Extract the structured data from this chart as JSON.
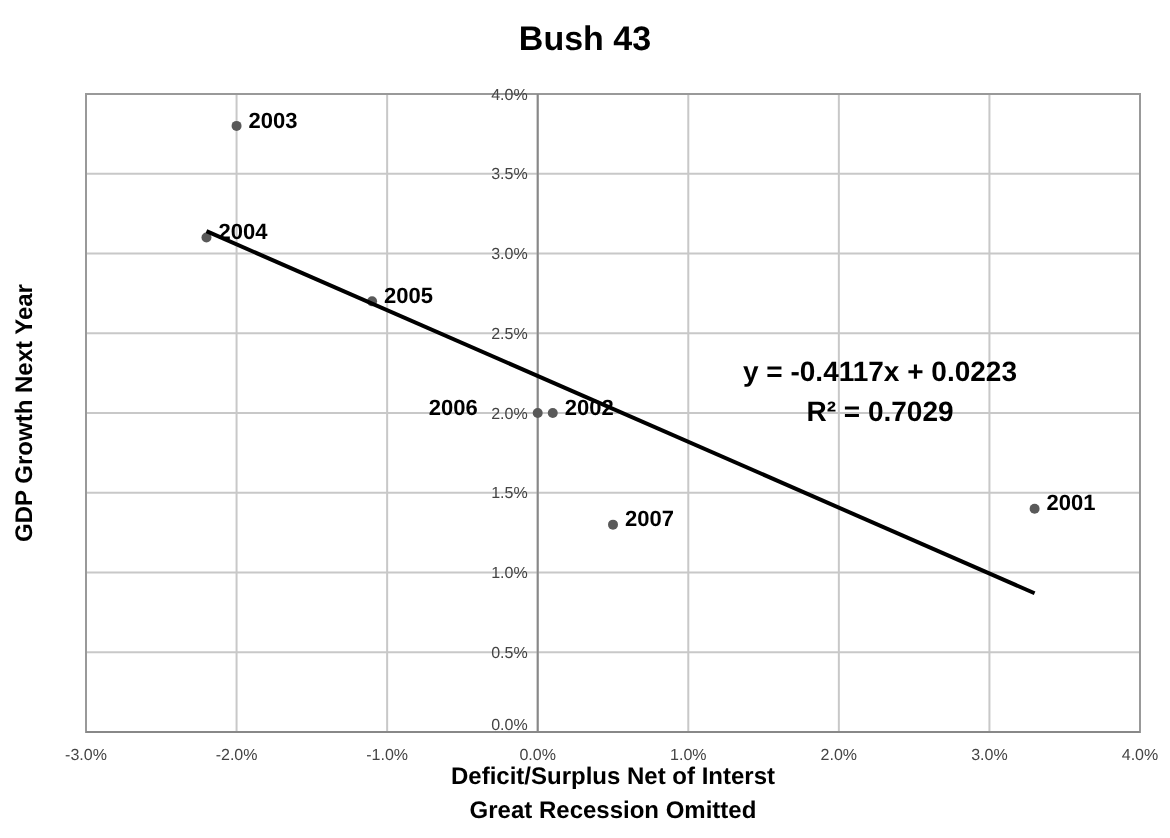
{
  "chart_data": {
    "type": "scatter",
    "title": "Bush 43",
    "xlabel": "Deficit/Surplus Net of Interst\nGreat Recession Omitted",
    "ylabel": "GDP Growth Next Year",
    "xlim": [
      -3,
      4
    ],
    "xticks": [
      {
        "value": -3,
        "label": "-3.0%"
      },
      {
        "value": -2,
        "label": "-2.0%"
      },
      {
        "value": -1,
        "label": "-1.0%"
      },
      {
        "value": 0,
        "label": "0.0%"
      },
      {
        "value": 1,
        "label": "1.0%"
      },
      {
        "value": 2,
        "label": "2.0%"
      },
      {
        "value": 3,
        "label": "3.0%"
      },
      {
        "value": 4,
        "label": "4.0%"
      }
    ],
    "ylim": [
      0,
      4
    ],
    "yticks": [
      {
        "value": 0,
        "label": "0.0%"
      },
      {
        "value": 0.5,
        "label": "0.5%"
      },
      {
        "value": 1,
        "label": "1.0%"
      },
      {
        "value": 1.5,
        "label": "1.5%"
      },
      {
        "value": 2,
        "label": "2.0%"
      },
      {
        "value": 2.5,
        "label": "2.5%"
      },
      {
        "value": 3,
        "label": "3.0%"
      },
      {
        "value": 3.5,
        "label": "3.5%"
      },
      {
        "value": 4,
        "label": "4.0%"
      }
    ],
    "grid": true,
    "series": [
      {
        "color": "#595959",
        "marker": "circle",
        "x": [
          3.3,
          0.1,
          -2.0,
          -2.2,
          -1.1,
          0.0,
          0.5
        ],
        "values": [
          1.4,
          2.0,
          3.8,
          3.1,
          2.7,
          2.0,
          1.3
        ]
      },
      {
        "type": "line",
        "color": "#000000",
        "x": [
          -2.2,
          3.3
        ],
        "values": [
          3.14,
          0.87
        ],
        "line_style": "solid"
      }
    ],
    "annotations": [
      {
        "text": "2001",
        "x": 3.3,
        "y": 1.4
      },
      {
        "text": "2002",
        "x": 0.1,
        "y": 2.0
      },
      {
        "text": "2003",
        "x": -2.0,
        "y": 3.8
      },
      {
        "text": "2004",
        "x": -2.2,
        "y": 3.1
      },
      {
        "text": "2005",
        "x": -1.1,
        "y": 2.7
      },
      {
        "text": "2006",
        "x": 0.0,
        "y": 2.0
      },
      {
        "text": "2007",
        "x": 0.5,
        "y": 1.3
      },
      "y = -0.4117x + 0.0223",
      "R² = 0.7029"
    ]
  }
}
